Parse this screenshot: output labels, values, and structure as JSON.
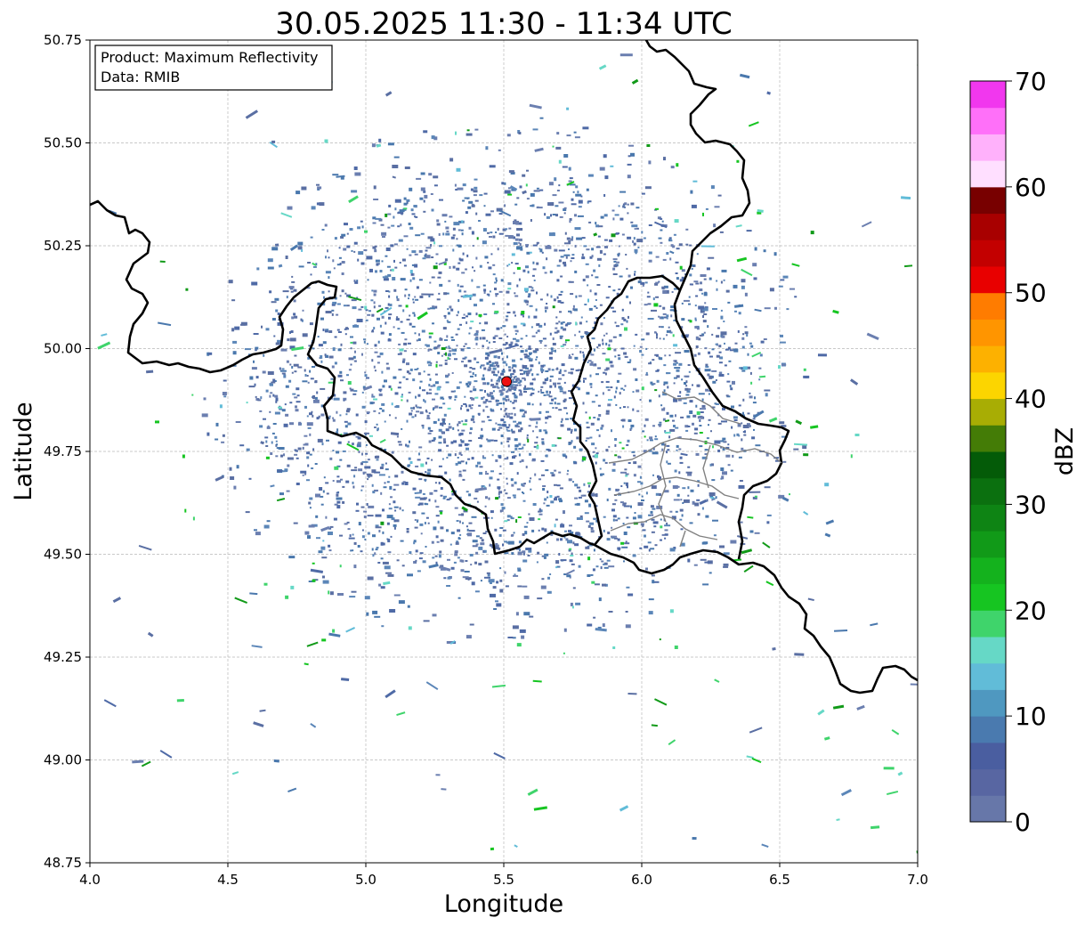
{
  "title": "30.05.2025 11:30 - 11:34 UTC",
  "info_box": {
    "product": "Product: Maximum Reflectivity",
    "data": "Data: RMIB"
  },
  "axes": {
    "xlabel": "Longitude",
    "ylabel": "Latitude",
    "xlim": [
      4.0,
      7.0
    ],
    "ylim": [
      48.75,
      50.75
    ],
    "xticks": [
      "4.0",
      "4.5",
      "5.0",
      "5.5",
      "6.0",
      "6.5",
      "7.0"
    ],
    "yticks": [
      "48.75",
      "49.00",
      "49.25",
      "49.50",
      "49.75",
      "50.00",
      "50.25",
      "50.50",
      "50.75"
    ],
    "grid": true
  },
  "radar_site": {
    "lon": 5.51,
    "lat": 49.92,
    "color": "#ee1111"
  },
  "colorbar": {
    "label": "dBZ",
    "ticks": [
      "0",
      "10",
      "20",
      "30",
      "40",
      "50",
      "60",
      "70"
    ],
    "range": [
      0,
      70
    ],
    "colors": [
      "#6777a9",
      "#5866a2",
      "#4a5ea0",
      "#4a7aaf",
      "#4f98c0",
      "#61bcd8",
      "#66d8c6",
      "#3fd46b",
      "#16c521",
      "#14b21d",
      "#119a18",
      "#0e8414",
      "#0b700f",
      "#045b08",
      "#447c06",
      "#a8ad04",
      "#fcd500",
      "#fdb100",
      "#ff9500",
      "#ff7c00",
      "#e80000",
      "#c30000",
      "#a80000",
      "#780000",
      "#ffdfff",
      "#ffb1fb",
      "#ff70f9",
      "#f137ee"
    ]
  }
}
